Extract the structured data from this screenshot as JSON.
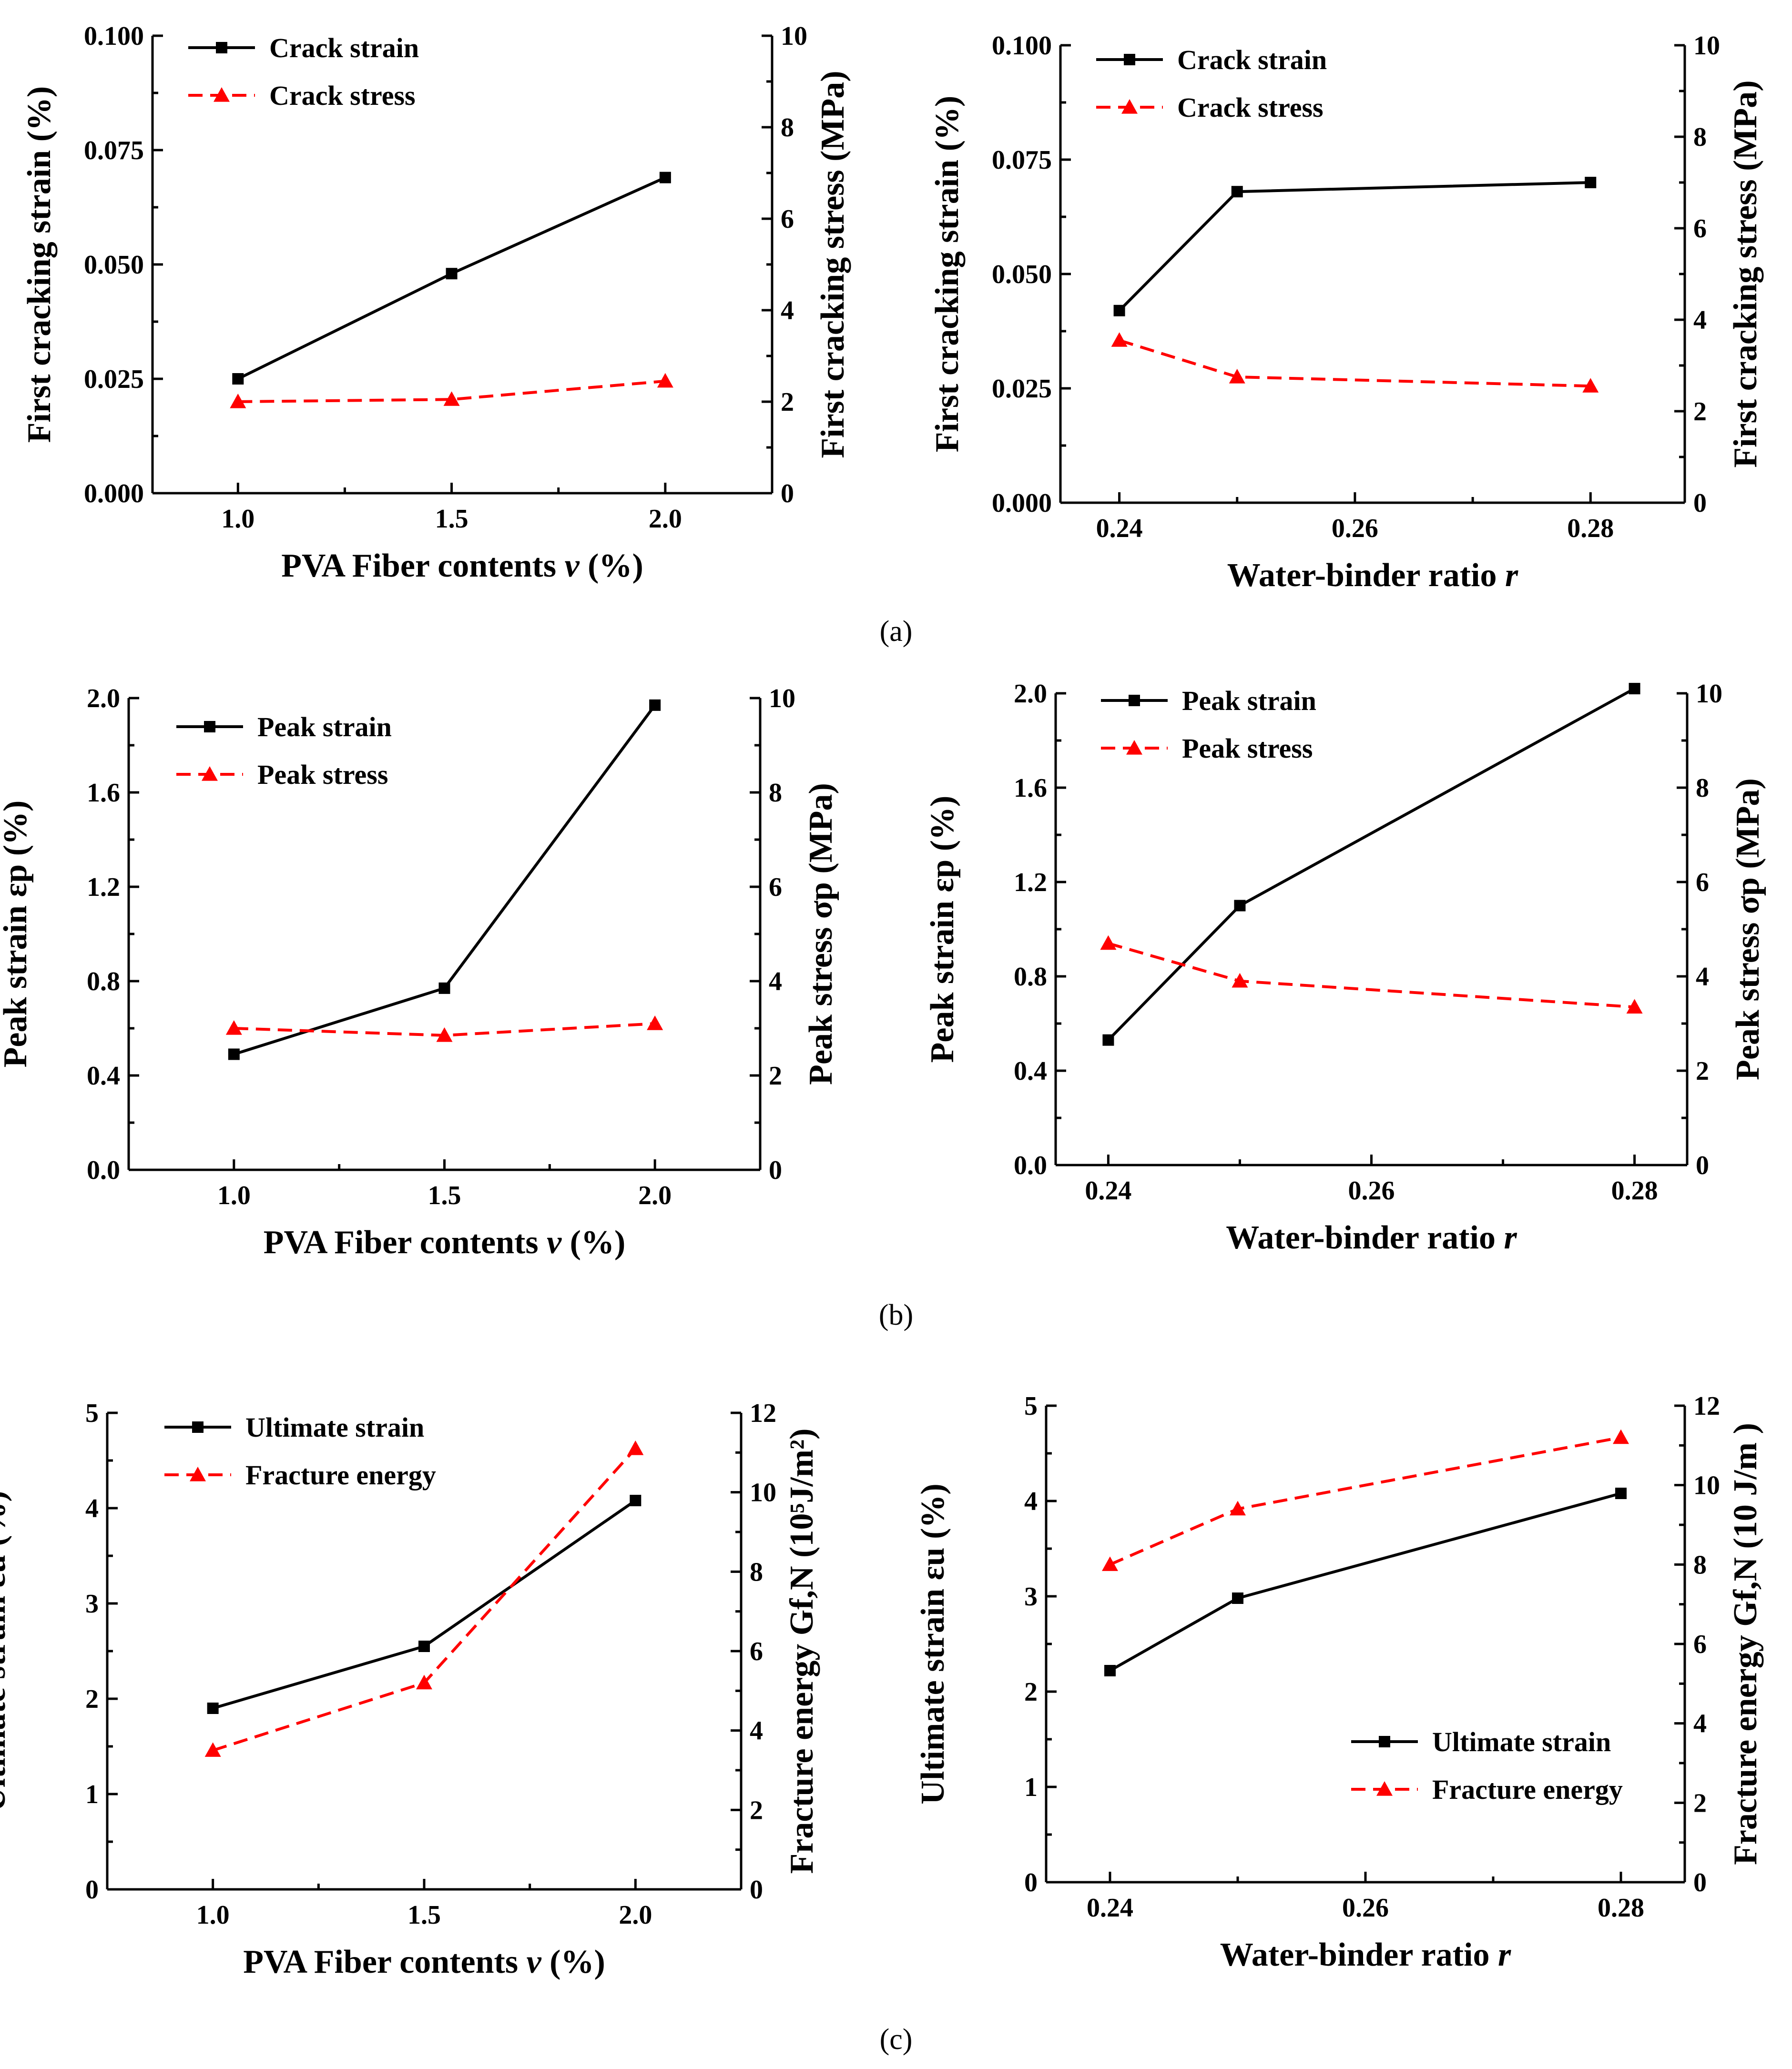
{
  "panel_labels": [
    "(a)",
    "(b)",
    "(c)"
  ],
  "chart_data": [
    {
      "type": "line",
      "panel": "a",
      "xlabel_text": "PVA Fiber contents ",
      "xlabel_var": "v",
      "xlabel_unit": " (%)",
      "ylabel": "First cracking strain (%)",
      "ylabel2": "First cracking stress (MPa)",
      "xlim": [
        0.8,
        2.25
      ],
      "ylim": [
        0,
        0.1
      ],
      "ylim2": [
        0,
        10
      ],
      "xticks": [
        "1.0",
        "1.5",
        "2.0"
      ],
      "xtick_values": [
        1.0,
        1.5,
        2.0
      ],
      "yticks": [
        "0.000",
        "0.025",
        "0.050",
        "0.075",
        "0.100"
      ],
      "yticks2": [
        "0",
        "2",
        "4",
        "6",
        "8",
        "10"
      ],
      "legend_position": "top-left",
      "series": [
        {
          "name": "Crack strain",
          "axis": "left",
          "color": "#000000",
          "marker": "square",
          "dash": "solid",
          "x": [
            1.0,
            1.5,
            2.0
          ],
          "values": [
            0.025,
            0.048,
            0.069
          ]
        },
        {
          "name": "Crack stress",
          "axis": "right",
          "color": "#ff0000",
          "marker": "triangle",
          "dash": "dashed",
          "x": [
            1.0,
            1.5,
            2.0
          ],
          "values": [
            2.0,
            2.05,
            2.45
          ]
        }
      ]
    },
    {
      "type": "line",
      "panel": "a",
      "xlabel_text": "Water-binder ratio ",
      "xlabel_var": "r",
      "xlabel_unit": "",
      "ylabel": "First cracking strain (%)",
      "ylabel2": "First cracking stress (MPa)",
      "xlim": [
        0.235,
        0.288
      ],
      "ylim": [
        0,
        0.1
      ],
      "ylim2": [
        0,
        10
      ],
      "xticks": [
        "0.24",
        "0.26",
        "0.28"
      ],
      "xtick_values": [
        0.24,
        0.26,
        0.28
      ],
      "yticks": [
        "0.000",
        "0.025",
        "0.050",
        "0.075",
        "0.100"
      ],
      "yticks2": [
        "0",
        "2",
        "4",
        "6",
        "8",
        "10"
      ],
      "legend_position": "top-left",
      "series": [
        {
          "name": "Crack strain",
          "axis": "left",
          "color": "#000000",
          "marker": "square",
          "dash": "solid",
          "x": [
            0.24,
            0.25,
            0.28
          ],
          "values": [
            0.042,
            0.068,
            0.07
          ]
        },
        {
          "name": "Crack stress",
          "axis": "right",
          "color": "#ff0000",
          "marker": "triangle",
          "dash": "dashed",
          "x": [
            0.24,
            0.25,
            0.28
          ],
          "values": [
            3.55,
            2.75,
            2.55
          ]
        }
      ]
    },
    {
      "type": "line",
      "panel": "b",
      "xlabel_text": "PVA Fiber contents ",
      "xlabel_var": "v",
      "xlabel_unit": " (%)",
      "ylabel": "Peak strain εp (%)",
      "ylabel2": "Peak stress σp (MPa)",
      "xlim": [
        0.75,
        2.25
      ],
      "ylim": [
        0,
        2.0
      ],
      "ylim2": [
        0,
        10
      ],
      "xticks": [
        "1.0",
        "1.5",
        "2.0"
      ],
      "xtick_values": [
        1.0,
        1.5,
        2.0
      ],
      "yticks": [
        "0.0",
        "0.4",
        "0.8",
        "1.2",
        "1.6",
        "2.0"
      ],
      "yticks2": [
        "0",
        "2",
        "4",
        "6",
        "8",
        "10"
      ],
      "legend_position": "top-left",
      "series": [
        {
          "name": "Peak strain",
          "axis": "left",
          "color": "#000000",
          "marker": "square",
          "dash": "solid",
          "x": [
            1.0,
            1.5,
            2.0
          ],
          "values": [
            0.49,
            0.77,
            1.97
          ]
        },
        {
          "name": "Peak stress",
          "axis": "right",
          "color": "#ff0000",
          "marker": "triangle",
          "dash": "dashed",
          "x": [
            1.0,
            1.5,
            2.0
          ],
          "values": [
            3.0,
            2.85,
            3.1
          ]
        }
      ]
    },
    {
      "type": "line",
      "panel": "b",
      "xlabel_text": "Water-binder ratio ",
      "xlabel_var": "r",
      "xlabel_unit": "",
      "ylabel": "Peak strain εp (%)",
      "ylabel2": "Peak stress σp (MPa)",
      "xlim": [
        0.236,
        0.284
      ],
      "ylim": [
        0,
        2.0
      ],
      "ylim2": [
        0,
        10
      ],
      "xticks": [
        "0.24",
        "0.26",
        "0.28"
      ],
      "xtick_values": [
        0.24,
        0.26,
        0.28
      ],
      "yticks": [
        "0.0",
        "0.4",
        "0.8",
        "1.2",
        "1.6",
        "2.0"
      ],
      "yticks2": [
        "0",
        "2",
        "4",
        "6",
        "8",
        "10"
      ],
      "legend_position": "top-left",
      "series": [
        {
          "name": "Peak strain",
          "axis": "left",
          "color": "#000000",
          "marker": "square",
          "dash": "solid",
          "x": [
            0.24,
            0.25,
            0.28
          ],
          "values": [
            0.53,
            1.1,
            2.02
          ]
        },
        {
          "name": "Peak stress",
          "axis": "right",
          "color": "#ff0000",
          "marker": "triangle",
          "dash": "dashed",
          "x": [
            0.24,
            0.25,
            0.28
          ],
          "values": [
            4.7,
            3.9,
            3.35
          ]
        }
      ]
    },
    {
      "type": "line",
      "panel": "c",
      "xlabel_text": "PVA Fiber contents ",
      "xlabel_var": "v",
      "xlabel_unit": " (%)",
      "ylabel": "Ultimate strain εu (%)",
      "ylabel2": "Fracture energy Gf,N (10⁵J/m²)",
      "xlim": [
        0.75,
        2.25
      ],
      "ylim": [
        0,
        5
      ],
      "ylim2": [
        0,
        12
      ],
      "xticks": [
        "1.0",
        "1.5",
        "2.0"
      ],
      "xtick_values": [
        1.0,
        1.5,
        2.0
      ],
      "yticks": [
        "0",
        "1",
        "2",
        "3",
        "4",
        "5"
      ],
      "yticks2": [
        "0",
        "2",
        "4",
        "6",
        "8",
        "10",
        "12"
      ],
      "legend_position": "top-left",
      "series": [
        {
          "name": "Ultimate strain",
          "axis": "left",
          "color": "#000000",
          "marker": "square",
          "dash": "solid",
          "x": [
            1.0,
            1.5,
            2.0
          ],
          "values": [
            1.9,
            2.55,
            4.08
          ]
        },
        {
          "name": "Fracture energy",
          "axis": "right",
          "color": "#ff0000",
          "marker": "triangle",
          "dash": "dashed",
          "x": [
            1.0,
            1.5,
            2.0
          ],
          "values": [
            3.5,
            5.2,
            11.1
          ]
        }
      ]
    },
    {
      "type": "line",
      "panel": "c",
      "xlabel_text": "Water-binder ratio ",
      "xlabel_var": "r",
      "xlabel_unit": "",
      "ylabel": "Ultimate strain εu (%)",
      "ylabel2": "Fracture energy Gf,N (10 J/m )",
      "xlim": [
        0.235,
        0.285
      ],
      "ylim": [
        0,
        5
      ],
      "ylim2": [
        0,
        12
      ],
      "xticks": [
        "0.24",
        "0.26",
        "0.28"
      ],
      "xtick_values": [
        0.24,
        0.26,
        0.28
      ],
      "yticks": [
        "0",
        "1",
        "2",
        "3",
        "4",
        "5"
      ],
      "yticks2": [
        "0",
        "2",
        "4",
        "6",
        "8",
        "10",
        "12"
      ],
      "legend_position": "bottom-right",
      "series": [
        {
          "name": "Ultimate strain",
          "axis": "left",
          "color": "#000000",
          "marker": "square",
          "dash": "solid",
          "x": [
            0.24,
            0.25,
            0.28
          ],
          "values": [
            2.22,
            2.98,
            4.08
          ]
        },
        {
          "name": "Fracture energy",
          "axis": "right",
          "color": "#ff0000",
          "marker": "triangle",
          "dash": "dashed",
          "x": [
            0.24,
            0.25,
            0.28
          ],
          "values": [
            8.0,
            9.4,
            11.2
          ]
        }
      ]
    }
  ]
}
